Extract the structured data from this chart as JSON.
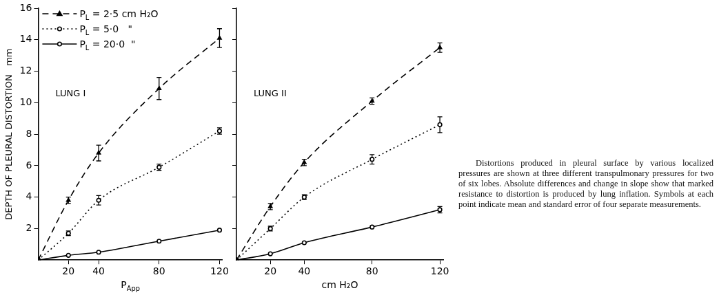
{
  "chart_data": [
    {
      "type": "line",
      "xlabel": "P$_{App}$",
      "ylabel": "DEPTH OF PLEURAL DISTORTION   mm",
      "x": [
        0,
        20,
        40,
        80,
        120
      ],
      "xlim": [
        0,
        122
      ],
      "xticks": [
        20,
        40,
        80,
        120
      ],
      "ylim": [
        0,
        16
      ],
      "yticks": [
        2,
        4,
        6,
        8,
        10,
        12,
        14,
        16
      ],
      "grid": false,
      "legend": "top left",
      "annotations": [
        "LUNG I"
      ],
      "series": [
        {
          "name": "P$_{L}$ = 2·5 cm H₂O",
          "color": "#000000",
          "line_style": "dashed",
          "marker": "triangle",
          "values": [
            0,
            3.8,
            6.8,
            10.9,
            14.1
          ],
          "errors": [
            null,
            0.2,
            0.5,
            0.7,
            0.6
          ]
        },
        {
          "name": "P$_{L}$ = 5·0   \"",
          "color": "#000000",
          "line_style": "dotted",
          "marker": "circle",
          "values": [
            0,
            1.7,
            3.8,
            5.9,
            8.2
          ],
          "errors": [
            null,
            0.15,
            0.3,
            0.2,
            0.2
          ]
        },
        {
          "name": "P$_{L}$ = 20·0  \"",
          "color": "#000000",
          "line_style": "solid",
          "marker": "circle",
          "values": [
            0,
            0.3,
            0.5,
            1.2,
            1.9
          ],
          "errors": [
            null,
            null,
            null,
            null,
            null
          ]
        }
      ]
    },
    {
      "type": "line",
      "xlabel": "cm H₂O",
      "x": [
        0,
        20,
        40,
        80,
        120
      ],
      "xlim": [
        0,
        122
      ],
      "xticks": [
        20,
        40,
        80,
        120
      ],
      "ylim": [
        0,
        16
      ],
      "yticks": [
        2,
        4,
        6,
        8,
        10,
        12,
        14,
        16
      ],
      "grid": false,
      "tick_labels": "x",
      "annotations": [
        "LUNG II",
        "Distortions produced in pleural surface by various localized pressures are shown at three different transpulmonary pressures for two of six lobes. Absolute differences and change in slope show that marked resistance to distortion is produced by lung inflation. Symbols at each point indicate mean and standard error of four separate measurements."
      ],
      "series": [
        {
          "color": "#000000",
          "line_style": "dashed",
          "marker": "triangle",
          "values": [
            0,
            3.4,
            6.2,
            10.1,
            13.5
          ],
          "errors": [
            null,
            0.2,
            0.2,
            0.2,
            0.3
          ]
        },
        {
          "color": "#000000",
          "line_style": "dotted",
          "marker": "circle",
          "values": [
            0,
            2.0,
            4.0,
            6.4,
            8.6
          ],
          "errors": [
            null,
            0.15,
            0.15,
            0.3,
            0.5
          ]
        },
        {
          "color": "#000000",
          "line_style": "solid",
          "marker": "circle",
          "values": [
            0,
            0.4,
            1.1,
            2.1,
            3.2
          ],
          "errors": [
            null,
            null,
            null,
            null,
            0.2
          ]
        }
      ]
    }
  ]
}
